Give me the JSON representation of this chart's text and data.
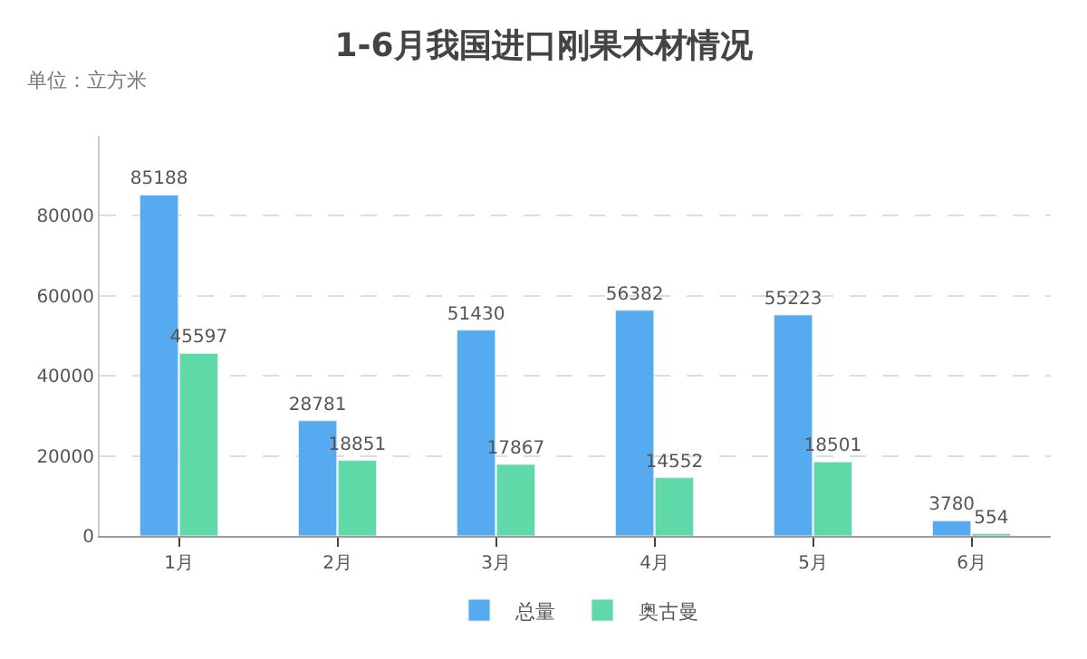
{
  "chart_data": {
    "type": "bar",
    "title": "1-6月我国进口刚果木材情况",
    "ylabel": "单位：立方米",
    "categories": [
      "1月",
      "2月",
      "3月",
      "4月",
      "5月",
      "6月"
    ],
    "series": [
      {
        "name": "总量",
        "color": "#56aaf0",
        "values": [
          85188,
          28781,
          51430,
          56382,
          55223,
          3780
        ]
      },
      {
        "name": "奥古曼",
        "color": "#5fd9a8",
        "values": [
          45597,
          18851,
          17867,
          14552,
          18501,
          554
        ]
      }
    ],
    "ylim": [
      0,
      100000
    ],
    "yticks": [
      0,
      20000,
      40000,
      60000,
      80000
    ],
    "grid": "y",
    "legend": "bottom",
    "data_labels": true
  }
}
